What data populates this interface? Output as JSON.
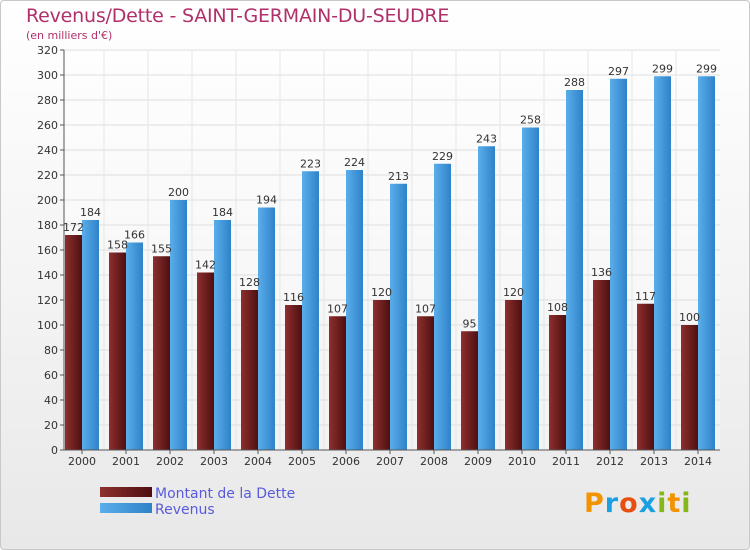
{
  "header": {
    "title": "Revenus/Dette - SAINT-GERMAIN-DU-SEUDRE",
    "subtitle": "(en milliers d'€)"
  },
  "logo": {
    "text": "Proxiti"
  },
  "colors": {
    "title": "#b0306a",
    "dette": "#6b1a1a",
    "revenus": "#3f95d9",
    "legend_text": "#5a5adc"
  },
  "chart_data": {
    "type": "bar",
    "title": "Revenus/Dette - SAINT-GERMAIN-DU-SEUDRE",
    "ylabel": "(en milliers d'€)",
    "xlabel": "",
    "categories": [
      "2000",
      "2001",
      "2002",
      "2003",
      "2004",
      "2005",
      "2006",
      "2007",
      "2008",
      "2009",
      "2010",
      "2011",
      "2012",
      "2013",
      "2014"
    ],
    "series": [
      {
        "name": "Montant de la Dette",
        "values": [
          172,
          158,
          155,
          142,
          128,
          116,
          107,
          120,
          107,
          95,
          120,
          108,
          136,
          117,
          100
        ]
      },
      {
        "name": "Revenus",
        "values": [
          184,
          166,
          200,
          184,
          194,
          223,
          224,
          213,
          229,
          243,
          258,
          288,
          297,
          299,
          299
        ]
      }
    ],
    "ylim": [
      0,
      320
    ],
    "yticks": [
      0,
      20,
      40,
      60,
      80,
      100,
      120,
      140,
      160,
      180,
      200,
      220,
      240,
      260,
      280,
      300,
      320
    ],
    "grid": true,
    "legend_position": "bottom-left"
  }
}
